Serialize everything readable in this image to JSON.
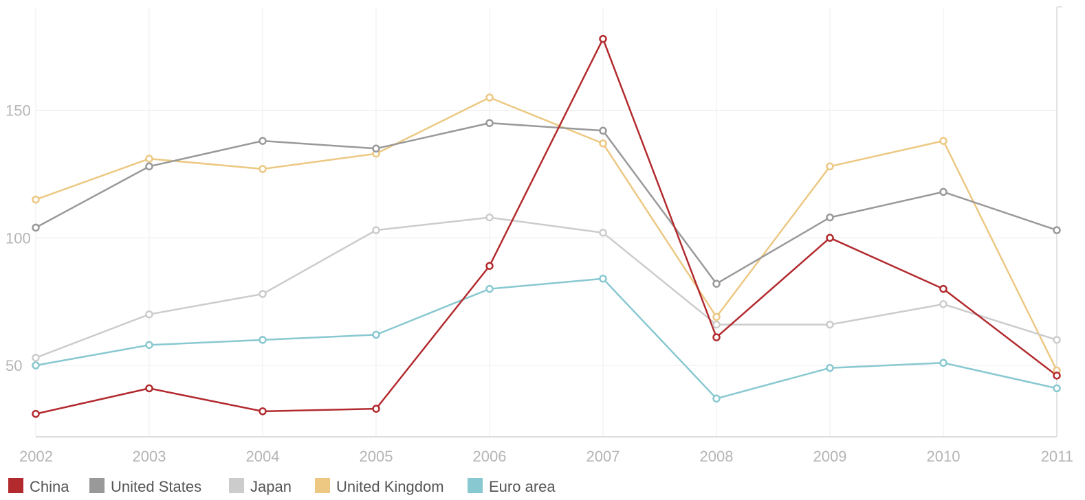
{
  "chart_data": {
    "type": "line",
    "title": "",
    "xlabel": "",
    "ylabel": "",
    "x": [
      "2002",
      "2003",
      "2004",
      "2005",
      "2006",
      "2007",
      "2008",
      "2009",
      "2010",
      "2011"
    ],
    "yticks": [
      "50",
      "100",
      "150"
    ],
    "ylim": [
      22,
      190
    ],
    "grid": true,
    "legend_position": "bottom-left",
    "series": [
      {
        "name": "China",
        "color": "#b22a2e",
        "values": [
          31,
          41,
          32,
          33,
          89,
          178,
          61,
          100,
          80,
          46
        ]
      },
      {
        "name": "United States",
        "color": "#999999",
        "values": [
          104,
          128,
          138,
          135,
          145,
          142,
          82,
          108,
          118,
          103
        ]
      },
      {
        "name": "Japan",
        "color": "#cccccc",
        "values": [
          53,
          70,
          78,
          103,
          108,
          102,
          66,
          66,
          74,
          60
        ]
      },
      {
        "name": "United Kingdom",
        "color": "#ecc882",
        "values": [
          115,
          131,
          127,
          133,
          155,
          137,
          69,
          128,
          138,
          48
        ]
      },
      {
        "name": "Euro area",
        "color": "#88c8d0",
        "values": [
          50,
          58,
          60,
          62,
          80,
          84,
          37,
          49,
          51,
          41
        ]
      }
    ]
  }
}
